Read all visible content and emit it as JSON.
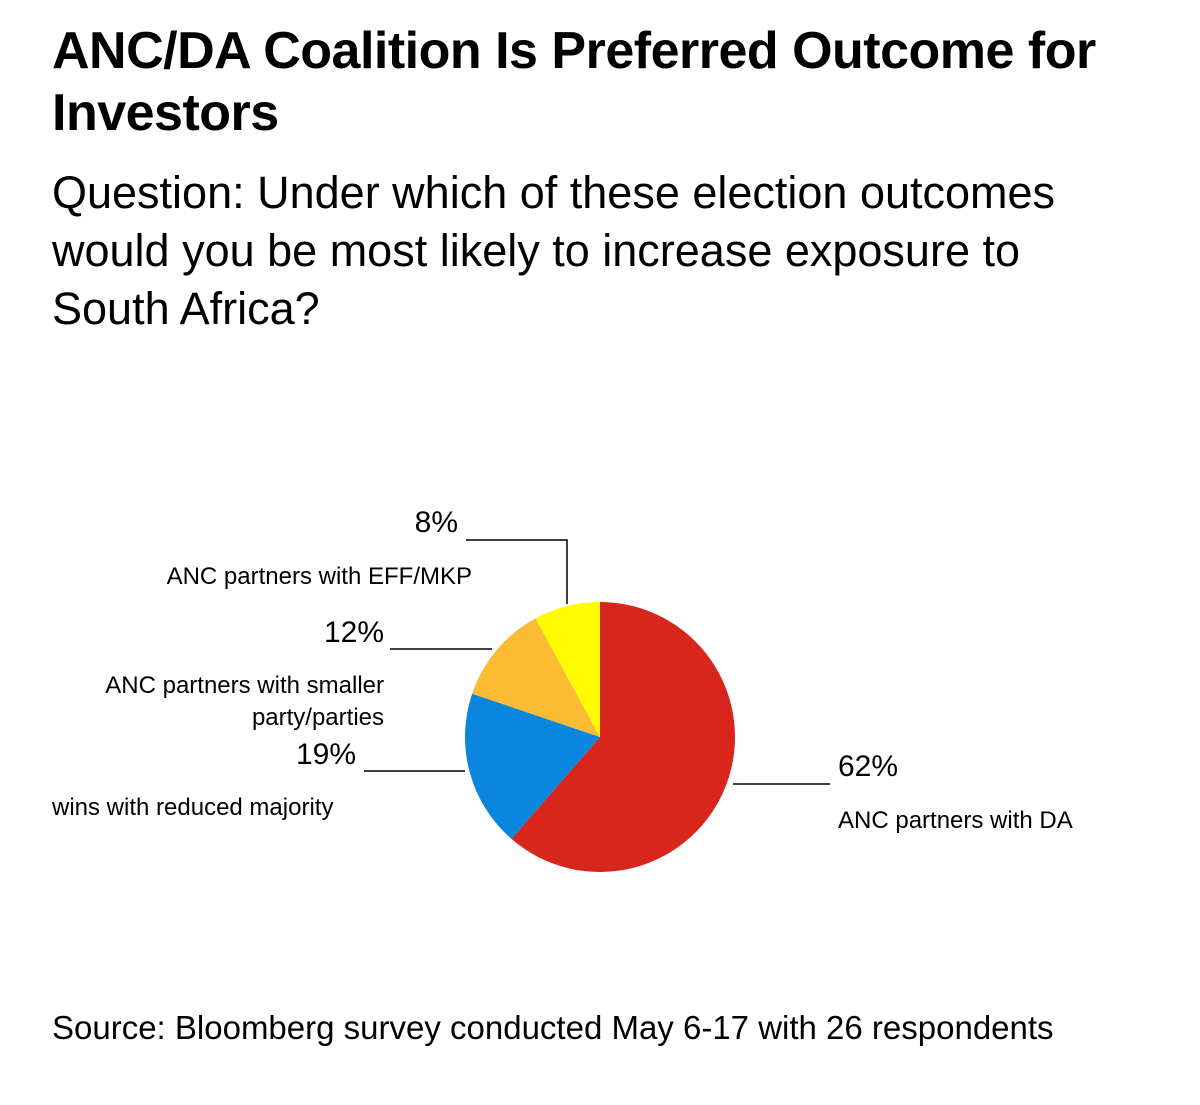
{
  "title": "ANC/DA Coalition Is Preferred Outcome for Investors",
  "subtitle": "Question: Under which of these election outcomes would you be most likely to increase exposure to South Africa?",
  "source": "Source: Bloomberg survey conducted May 6-17 with 26 respondents",
  "chart_data": {
    "type": "pie",
    "title": "ANC/DA Coalition Is Preferred Outcome for Investors",
    "subtitle": "Question: Under which of these election outcomes would you be most likely to increase exposure to South Africa?",
    "start": "12 o'clock, clockwise",
    "slices": [
      {
        "label": "ANC partners with DA",
        "value": 62,
        "value_label": "62%",
        "color": "#d9261c"
      },
      {
        "label": "wins with reduced majority",
        "value": 19,
        "value_label": "19%",
        "color": "#0a86de"
      },
      {
        "label": "ANC partners with smaller party/parties",
        "value": 12,
        "value_label": "12%",
        "color": "#fbbb33"
      },
      {
        "label": "ANC partners with EFF/MKP",
        "value": 8,
        "value_label": "8%",
        "color": "#fffb00"
      }
    ]
  }
}
